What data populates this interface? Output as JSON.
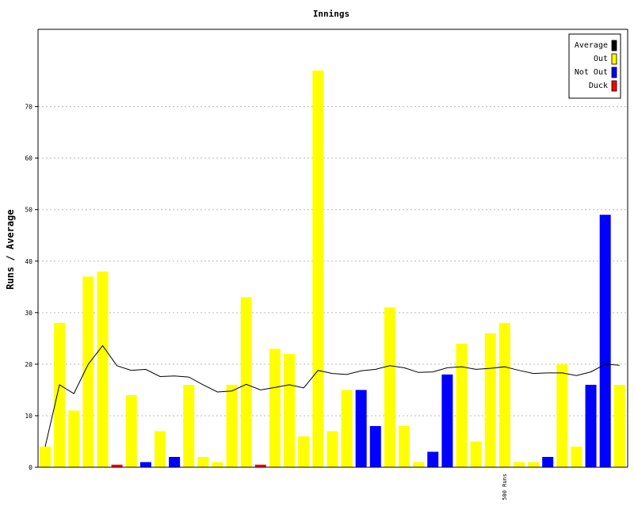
{
  "chart_data": {
    "type": "bar",
    "title": "Innings",
    "ylabel": "Runs / Average",
    "xlabel": "",
    "ylim": [
      0,
      85
    ],
    "yticks": [
      0,
      10,
      20,
      30,
      40,
      50,
      60,
      70
    ],
    "grid": true,
    "legend_position": "top-right",
    "legend": [
      {
        "name": "Average",
        "color": "#000000"
      },
      {
        "name": "Out",
        "color": "#ffff00"
      },
      {
        "name": "Not Out",
        "color": "#0000ff"
      },
      {
        "name": "Duck",
        "color": "#ff0000"
      }
    ],
    "innings": [
      {
        "runs": 4,
        "status": "Out"
      },
      {
        "runs": 28,
        "status": "Out"
      },
      {
        "runs": 11,
        "status": "Out"
      },
      {
        "runs": 37,
        "status": "Out"
      },
      {
        "runs": 38,
        "status": "Out"
      },
      {
        "runs": 0.5,
        "status": "Duck"
      },
      {
        "runs": 14,
        "status": "Out"
      },
      {
        "runs": 1,
        "status": "Not Out"
      },
      {
        "runs": 7,
        "status": "Out"
      },
      {
        "runs": 2,
        "status": "Not Out"
      },
      {
        "runs": 16,
        "status": "Out"
      },
      {
        "runs": 2,
        "status": "Out"
      },
      {
        "runs": 1,
        "status": "Out"
      },
      {
        "runs": 16,
        "status": "Out"
      },
      {
        "runs": 33,
        "status": "Out"
      },
      {
        "runs": 0.5,
        "status": "Duck"
      },
      {
        "runs": 23,
        "status": "Out"
      },
      {
        "runs": 22,
        "status": "Out"
      },
      {
        "runs": 6,
        "status": "Out"
      },
      {
        "runs": 77,
        "status": "Out"
      },
      {
        "runs": 7,
        "status": "Out"
      },
      {
        "runs": 15,
        "status": "Out"
      },
      {
        "runs": 15,
        "status": "Not Out"
      },
      {
        "runs": 8,
        "status": "Not Out"
      },
      {
        "runs": 31,
        "status": "Out"
      },
      {
        "runs": 8,
        "status": "Out"
      },
      {
        "runs": 1,
        "status": "Out"
      },
      {
        "runs": 3,
        "status": "Not Out"
      },
      {
        "runs": 18,
        "status": "Not Out"
      },
      {
        "runs": 24,
        "status": "Out"
      },
      {
        "runs": 5,
        "status": "Out"
      },
      {
        "runs": 26,
        "status": "Out"
      },
      {
        "runs": 28,
        "status": "Out"
      },
      {
        "runs": 1,
        "status": "Out"
      },
      {
        "runs": 1,
        "status": "Out"
      },
      {
        "runs": 2,
        "status": "Not Out"
      },
      {
        "runs": 20,
        "status": "Out"
      },
      {
        "runs": 4,
        "status": "Out"
      },
      {
        "runs": 16,
        "status": "Not Out"
      },
      {
        "runs": 49,
        "status": "Not Out"
      },
      {
        "runs": 16,
        "status": "Out"
      }
    ],
    "average_line": [
      4,
      16,
      14.3,
      20,
      23.6,
      19.7,
      18.8,
      19,
      17.6,
      17.7,
      17.5,
      16,
      14.6,
      14.8,
      16.1,
      15,
      15.5,
      16,
      15.4,
      18.8,
      18.2,
      18,
      18.7,
      19,
      19.7,
      19.3,
      18.4,
      18.5,
      19.3,
      19.5,
      19,
      19.2,
      19.5,
      18.8,
      18.2,
      18.3,
      18.3,
      17.8,
      18.5,
      20,
      19.8
    ],
    "annotations": [
      {
        "text": "500 Runs",
        "inning_index": 32
      }
    ]
  }
}
